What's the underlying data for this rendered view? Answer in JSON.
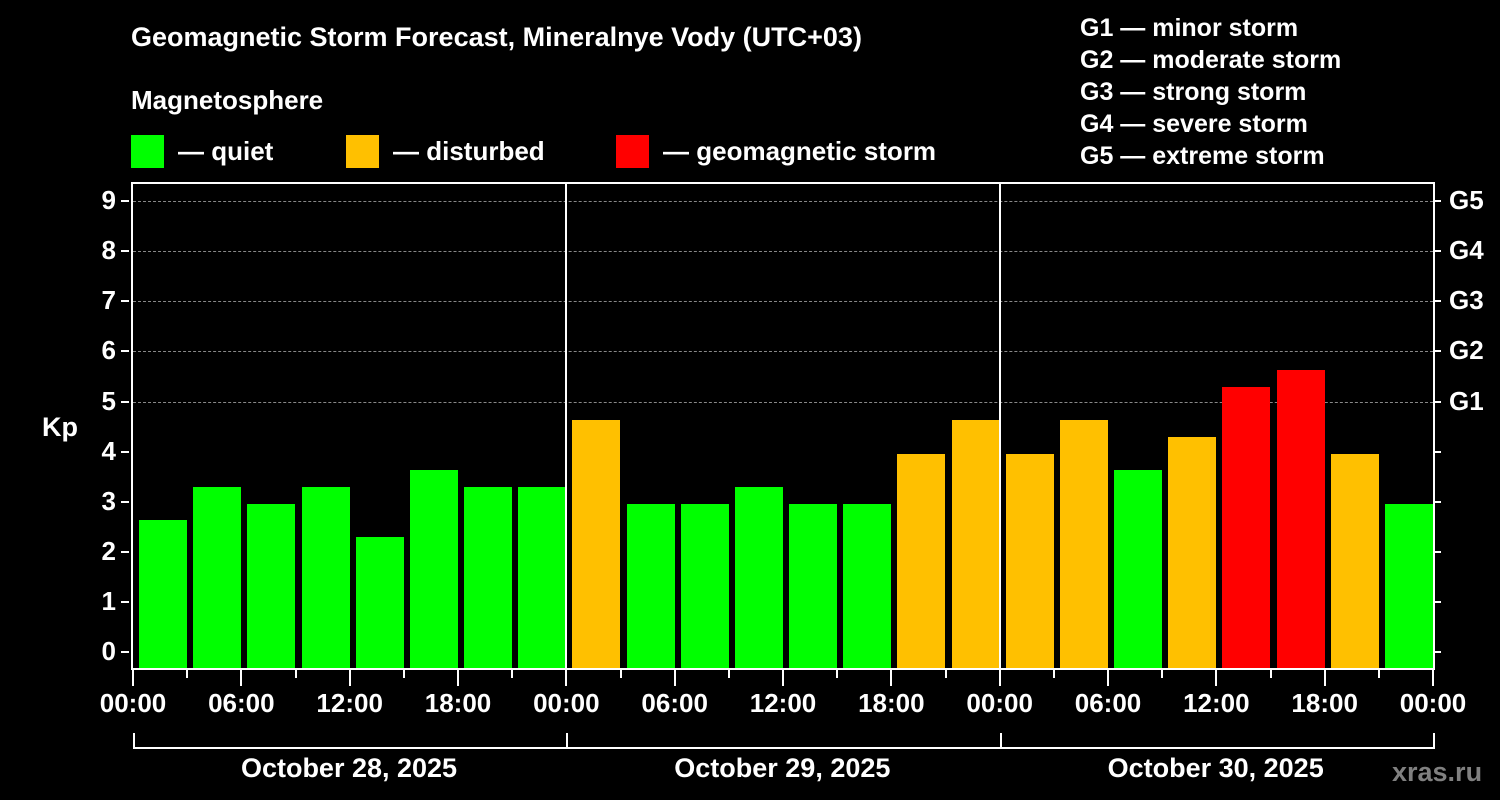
{
  "header": {
    "title": "Geomagnetic Storm Forecast, Mineralnye Vody (UTC+03)",
    "subtitle": "Magnetosphere"
  },
  "legend": [
    {
      "label": "— quiet",
      "color": "#00ff00"
    },
    {
      "label": "— disturbed",
      "color": "#ffc000"
    },
    {
      "label": "— geomagnetic storm",
      "color": "#ff0000"
    }
  ],
  "g_scale_legend": [
    "G1 — minor storm",
    "G2 — moderate storm",
    "G3 — strong storm",
    "G4 — severe storm",
    "G5 — extreme storm"
  ],
  "watermark": "xras.ru",
  "chart_data": {
    "type": "bar",
    "title": "Geomagnetic Storm Forecast, Mineralnye Vody (UTC+03)",
    "xlabel": "",
    "ylabel": "Kp",
    "ylim": [
      0,
      9
    ],
    "y_ticks": [
      "0",
      "1",
      "2",
      "3",
      "4",
      "5",
      "6",
      "7",
      "8",
      "9"
    ],
    "right_axis_ticks": [
      {
        "value": 5,
        "label": "G1"
      },
      {
        "value": 6,
        "label": "G2"
      },
      {
        "value": 7,
        "label": "G3"
      },
      {
        "value": 8,
        "label": "G4"
      },
      {
        "value": 9,
        "label": "G5"
      }
    ],
    "x_tick_labels": [
      "00:00",
      "06:00",
      "12:00",
      "18:00",
      "00:00",
      "06:00",
      "12:00",
      "18:00",
      "00:00",
      "06:00",
      "12:00",
      "18:00",
      "00:00"
    ],
    "dates": [
      "October 28, 2025",
      "October 29, 2025",
      "October 30, 2025"
    ],
    "grid": "horizontal dashed at 5-9",
    "categories": [
      "Oct 28 00-03",
      "Oct 28 03-06",
      "Oct 28 06-09",
      "Oct 28 09-12",
      "Oct 28 12-15",
      "Oct 28 15-18",
      "Oct 28 18-21",
      "Oct 28 21-24",
      "Oct 29 00-03",
      "Oct 29 03-06",
      "Oct 29 06-09",
      "Oct 29 09-12",
      "Oct 29 12-15",
      "Oct 29 15-18",
      "Oct 29 18-21",
      "Oct 29 21-24",
      "Oct 30 00-03",
      "Oct 30 03-06",
      "Oct 30 06-09",
      "Oct 30 09-12",
      "Oct 30 12-15",
      "Oct 30 15-18",
      "Oct 30 18-21",
      "Oct 30 21-24"
    ],
    "values": [
      2.67,
      3.33,
      3.0,
      3.33,
      2.33,
      3.67,
      3.33,
      3.33,
      4.67,
      3.0,
      3.0,
      3.33,
      3.0,
      3.0,
      4.0,
      4.67,
      4.0,
      4.67,
      3.67,
      4.33,
      5.33,
      5.67,
      4.0,
      3.0
    ],
    "status": [
      "quiet",
      "quiet",
      "quiet",
      "quiet",
      "quiet",
      "quiet",
      "quiet",
      "quiet",
      "disturbed",
      "quiet",
      "quiet",
      "quiet",
      "quiet",
      "quiet",
      "disturbed",
      "disturbed",
      "disturbed",
      "disturbed",
      "quiet",
      "disturbed",
      "storm",
      "storm",
      "disturbed",
      "quiet"
    ],
    "status_colors": {
      "quiet": "#00ff00",
      "disturbed": "#ffc000",
      "storm": "#ff0000"
    }
  }
}
